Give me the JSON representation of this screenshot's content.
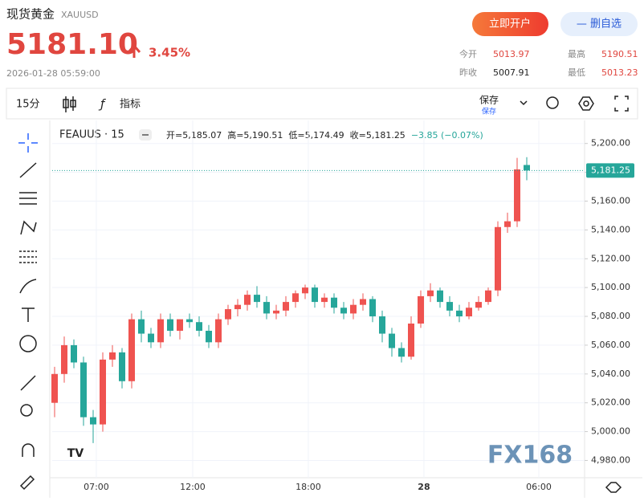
{
  "header": {
    "title": "现货黄金",
    "symbol": "XAUUSD",
    "price": "5181.10",
    "change": "3.45%",
    "datetime": "2026-01-28 05:59:00",
    "buttons": [
      "立即开户",
      "— 删自选"
    ],
    "stats": [
      {
        "label": "今开",
        "value": "5013.97"
      },
      {
        "label": "最高",
        "value": "5190.51"
      },
      {
        "label": "昨收",
        "value": "5007.91"
      },
      {
        "label": "最低",
        "value": "5013.23"
      }
    ]
  },
  "toolbar": {
    "interval": "15分",
    "indicators": "指标",
    "save": "保存",
    "save_sub": "保存"
  },
  "chart_data": {
    "type": "candlestick",
    "name": "FEAUUS · 15",
    "legend": [
      "开=5,185.07",
      "高=5,190.51",
      "低=5,174.49",
      "收=5,181.25",
      "−3.85 (−0.07%)"
    ],
    "up_color": "#ef5350",
    "down_color": "#26a69a",
    "open": [
      5020,
      5040,
      5060,
      5048,
      5010,
      5005,
      5050,
      5055,
      5035,
      5078,
      5068,
      5062,
      5078,
      5070,
      5078,
      5076,
      5070,
      5062,
      5078,
      5085,
      5088,
      5095,
      5090,
      5082,
      5084,
      5090,
      5096,
      5100,
      5090,
      5093,
      5086,
      5082,
      5088,
      5092,
      5080,
      5068,
      5058,
      5052,
      5075,
      5094,
      5098,
      5090,
      5084,
      5080,
      5086,
      5090,
      5098,
      5142,
      5146,
      5185.07
    ],
    "high": [
      5045,
      5066,
      5064,
      5052,
      5015,
      5055,
      5060,
      5058,
      5082,
      5084,
      5072,
      5082,
      5082,
      5076,
      5082,
      5080,
      5074,
      5082,
      5088,
      5092,
      5098,
      5101,
      5094,
      5088,
      5094,
      5098,
      5102,
      5102,
      5096,
      5096,
      5090,
      5092,
      5096,
      5094,
      5084,
      5072,
      5062,
      5080,
      5098,
      5103,
      5100,
      5094,
      5088,
      5090,
      5094,
      5100,
      5146,
      5152,
      5190,
      5190.51
    ],
    "low": [
      5010,
      5034,
      5044,
      5004,
      4992,
      5000,
      5045,
      5030,
      5030,
      5062,
      5058,
      5058,
      5066,
      5064,
      5072,
      5066,
      5058,
      5058,
      5074,
      5080,
      5084,
      5086,
      5078,
      5078,
      5080,
      5086,
      5092,
      5086,
      5086,
      5082,
      5078,
      5078,
      5084,
      5076,
      5062,
      5052,
      5048,
      5050,
      5072,
      5090,
      5086,
      5080,
      5076,
      5078,
      5084,
      5088,
      5094,
      5138,
      5142,
      5174.49
    ],
    "close": [
      5040,
      5060,
      5048,
      5010,
      5005,
      5050,
      5055,
      5035,
      5078,
      5068,
      5062,
      5078,
      5070,
      5078,
      5076,
      5070,
      5062,
      5078,
      5085,
      5088,
      5095,
      5090,
      5082,
      5084,
      5090,
      5096,
      5100,
      5090,
      5093,
      5086,
      5082,
      5088,
      5092,
      5080,
      5068,
      5058,
      5052,
      5075,
      5094,
      5098,
      5090,
      5084,
      5080,
      5086,
      5090,
      5098,
      5142,
      5146,
      5182,
      5181.25
    ],
    "ylim": [
      4968,
      5216
    ],
    "yticks": [
      {
        "value": 4980,
        "label": "4,980.00"
      },
      {
        "value": 5000,
        "label": "5,000.00"
      },
      {
        "value": 5020,
        "label": "5,020.00"
      },
      {
        "value": 5040,
        "label": "5,040.00"
      },
      {
        "value": 5060,
        "label": "5,060.00"
      },
      {
        "value": 5080,
        "label": "5,080.00"
      },
      {
        "value": 5100,
        "label": "5,100.00"
      },
      {
        "value": 5120,
        "label": "5,120.00"
      },
      {
        "value": 5140,
        "label": "5,140.00"
      },
      {
        "value": 5160,
        "label": "5,160.00"
      },
      {
        "value": 5180,
        "label": "5,180.00"
      },
      {
        "value": 5200,
        "label": "5,200.00"
      }
    ],
    "xlim": [
      -0.25,
      55
    ],
    "xticks": [
      {
        "value": 4.33,
        "label": "07:00"
      },
      {
        "value": 14.33,
        "label": "12:00"
      },
      {
        "value": 26.33,
        "label": "18:00"
      },
      {
        "value": 38.33,
        "label": "28"
      },
      {
        "value": 50.25,
        "label": "06:00"
      }
    ],
    "last_price": {
      "value": 5181.25,
      "label": "5,181.25"
    },
    "grid": true,
    "watermark": "FX168"
  }
}
